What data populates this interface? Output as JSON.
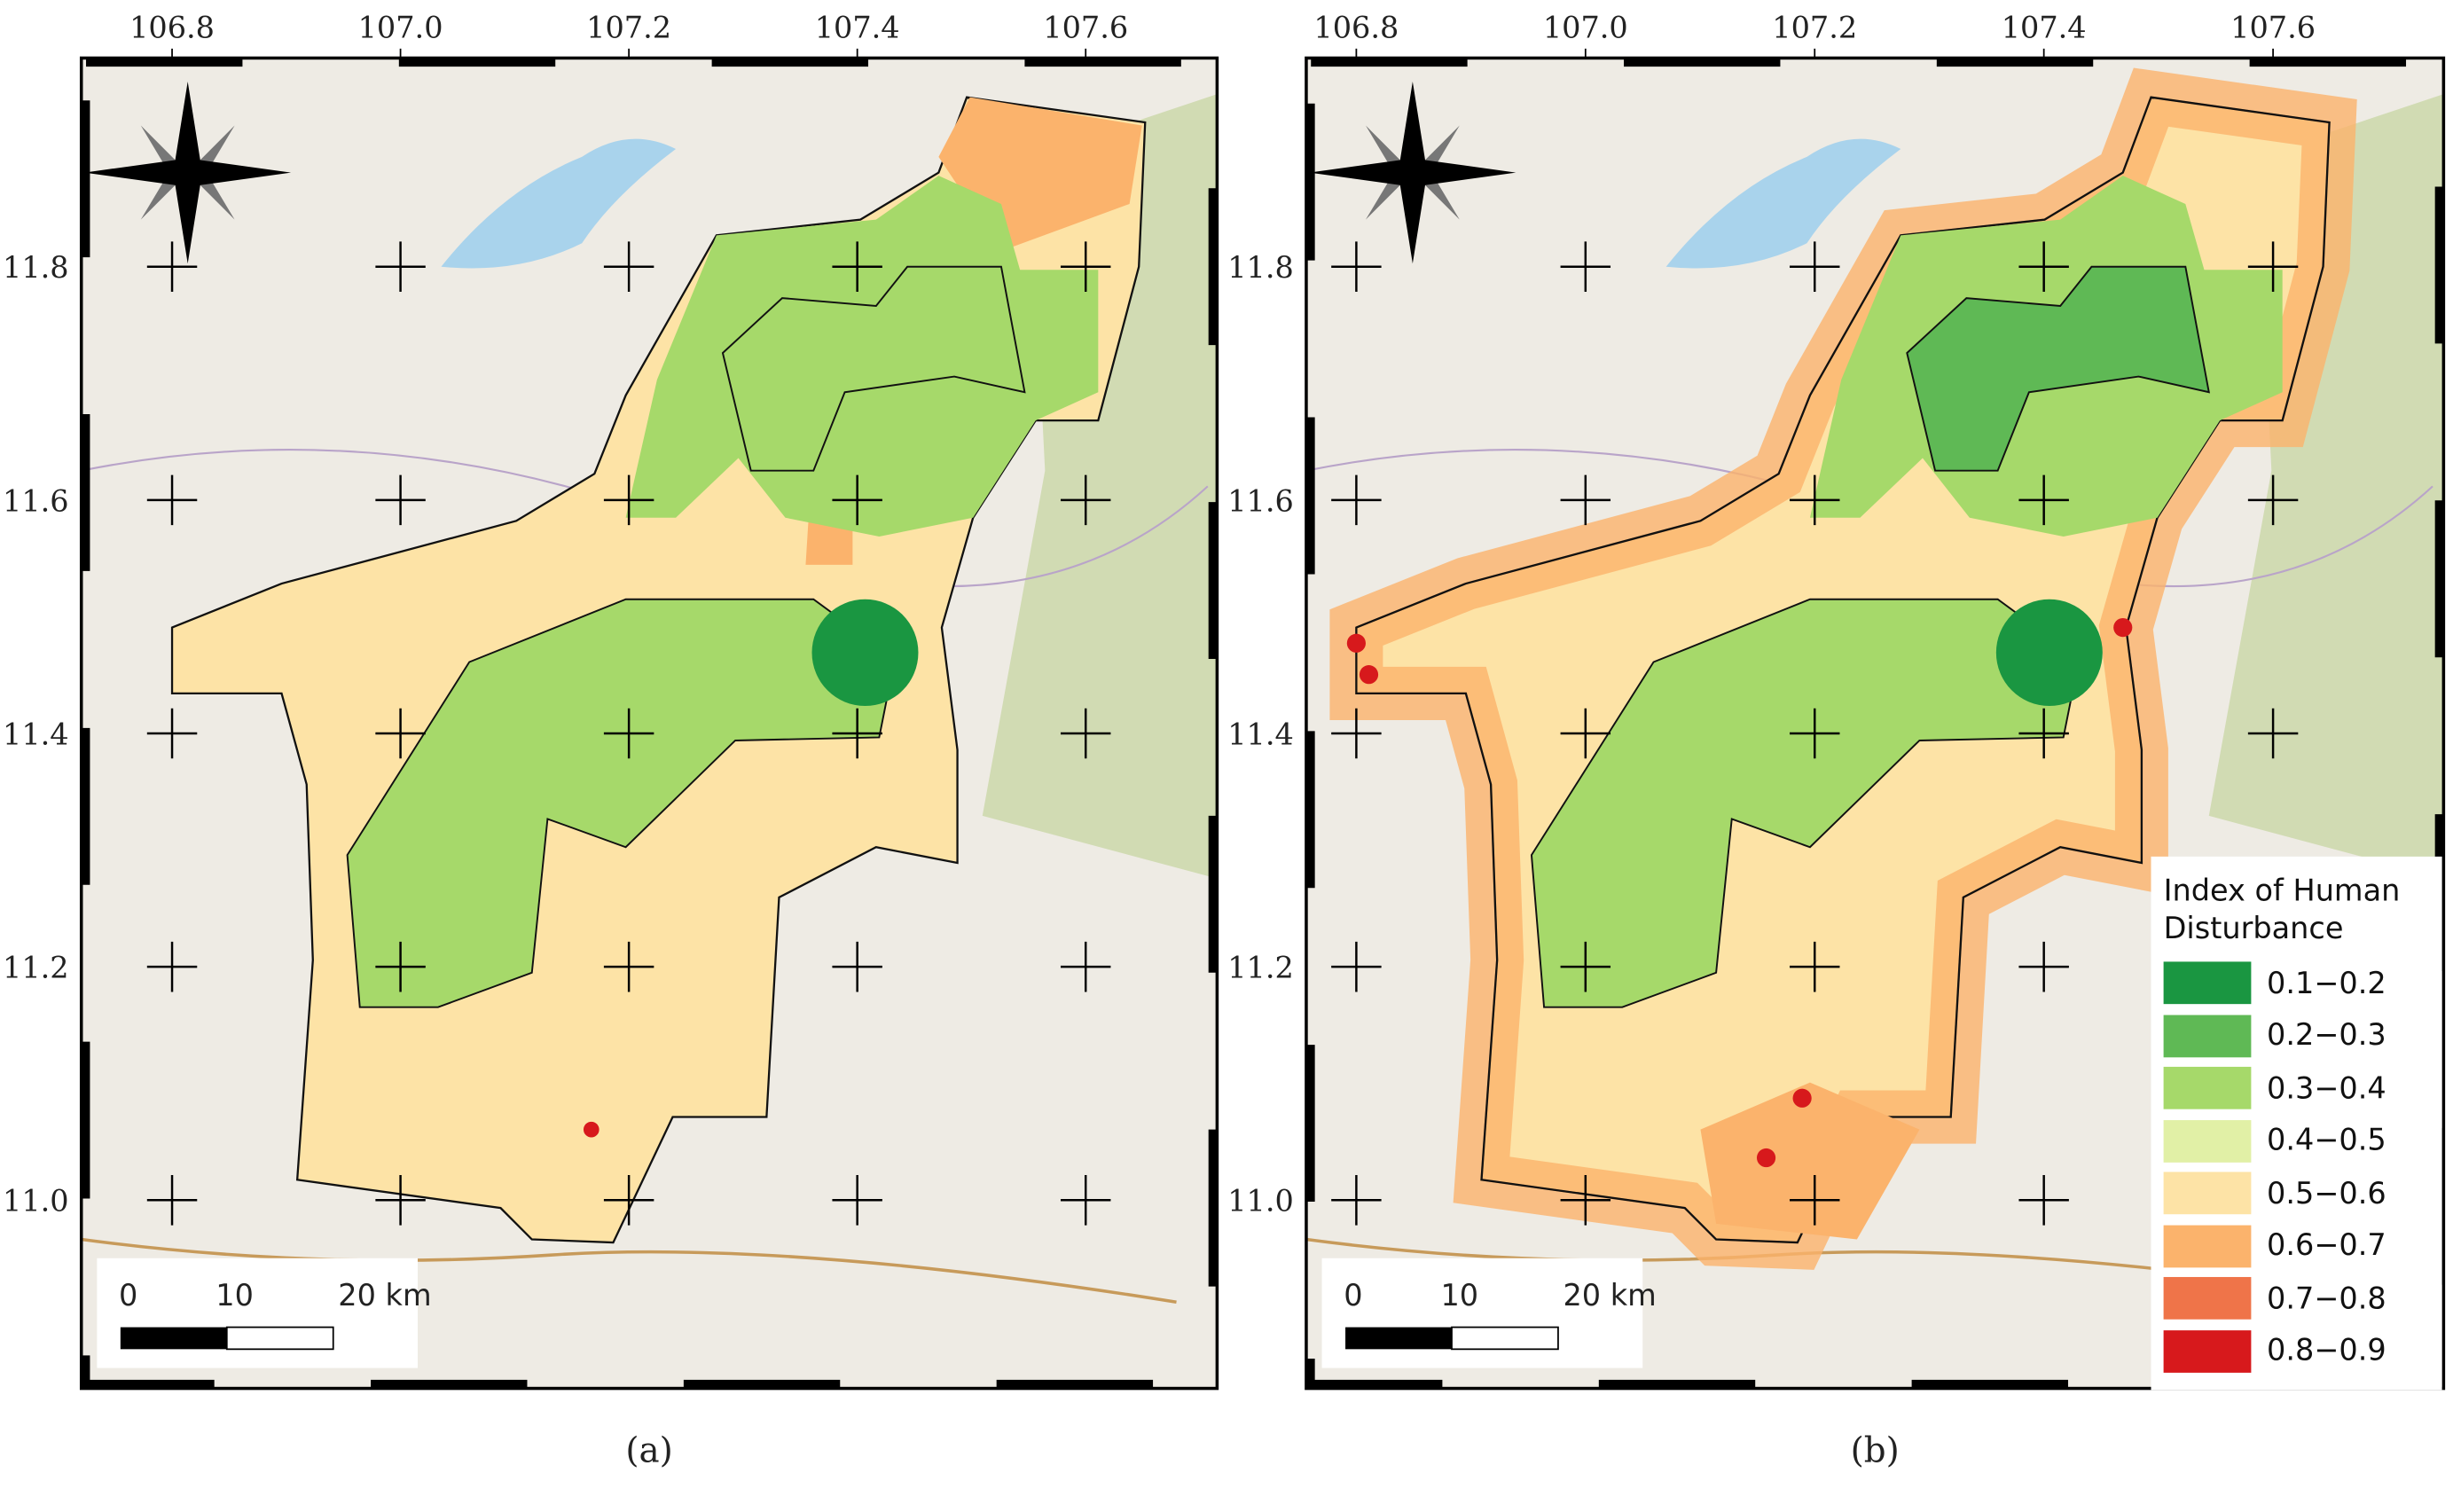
{
  "panels": [
    {
      "caption": "(a)"
    },
    {
      "caption": "(b)"
    }
  ],
  "axes": {
    "lon_ticks": [
      106.8,
      {
        "value": 107,
        "label": "107.0"
      },
      107.2,
      107.4,
      107.6
    ],
    "lat_ticks": [
      11.8,
      11.6,
      11.4,
      11.2,
      {
        "value": 11,
        "label": "11.0"
      }
    ]
  },
  "scale_bar": {
    "labels": [
      "0",
      "10",
      "20 km"
    ]
  },
  "legend": {
    "title": "Index of Human Disturbance",
    "items": [
      {
        "label": "0.1−0.2",
        "color": "#1a9641"
      },
      {
        "label": "0.2−0.3",
        "color": "#5fb955"
      },
      {
        "label": "0.3−0.4",
        "color": "#a6d96a"
      },
      {
        "label": "0.4−0.5",
        "color": "#e1f0a6"
      },
      {
        "label": "0.5−0.6",
        "color": "#fde3a6"
      },
      {
        "label": "0.6−0.7",
        "color": "#fbb36c"
      },
      {
        "label": "0.7−0.8",
        "color": "#ef7449"
      },
      {
        "label": "0.8−0.9",
        "color": "#d7191c"
      }
    ]
  }
}
